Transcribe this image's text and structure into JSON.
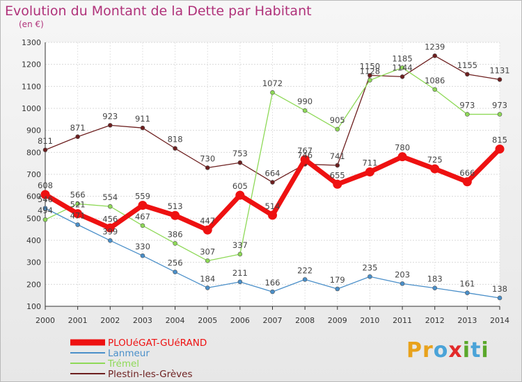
{
  "title": "Evolution du Montant de la Dette par Habitant",
  "subtitle": "(en €)",
  "logo": {
    "letters": [
      "P",
      "r",
      "o",
      "x",
      "i",
      "t",
      "i"
    ],
    "colors": [
      "#e8a21c",
      "#e8a21c",
      "#4aa3d8",
      "#e22a2a",
      "#5aa82b",
      "#4aa3d8",
      "#5aa82b"
    ]
  },
  "chart_data": {
    "type": "line",
    "x": [
      2000,
      2001,
      2002,
      2003,
      2004,
      2005,
      2006,
      2007,
      2008,
      2009,
      2010,
      2011,
      2012,
      2013,
      2014
    ],
    "ylim": [
      100,
      1300
    ],
    "yticks": [
      100,
      200,
      300,
      400,
      500,
      600,
      700,
      800,
      900,
      1000,
      1100,
      1200,
      1300
    ],
    "grid": true,
    "legend_position": "bottom-left",
    "series": [
      {
        "name": "PLOUéGAT-GUéRAND",
        "color": "#ee1111",
        "values": [
          608,
          521,
          456,
          559,
          513,
          447,
          605,
          514,
          767,
          655,
          711,
          780,
          725,
          666,
          815
        ]
      },
      {
        "name": "Lanmeur",
        "color": "#4a8fc9",
        "values": [
          546,
          471,
          399,
          330,
          256,
          184,
          211,
          166,
          222,
          179,
          235,
          203,
          183,
          161,
          138
        ]
      },
      {
        "name": "Trémel",
        "color": "#8ed957",
        "values": [
          494,
          566,
          554,
          467,
          386,
          307,
          337,
          1072,
          990,
          905,
          1128,
          1185,
          1086,
          973,
          973
        ]
      },
      {
        "name": "Plestin-les-Grèves",
        "color": "#6d1f1f",
        "values": [
          811,
          871,
          923,
          911,
          818,
          730,
          753,
          664,
          746,
          741,
          1150,
          1144,
          1239,
          1155,
          1131
        ]
      }
    ]
  }
}
